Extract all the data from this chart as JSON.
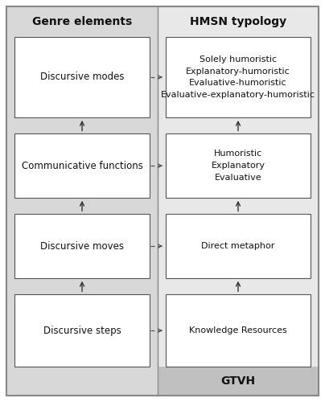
{
  "left_header": "Genre elements",
  "right_header": "HMSN typology",
  "gtvh_label": "GTVH",
  "fig_bg": "#ffffff",
  "outer_bg": "#e0e0e0",
  "left_panel_color": "#d8d8d8",
  "right_upper_color": "#e8e8e8",
  "right_lower_color": "#c0c0c0",
  "box_facecolor": "#ffffff",
  "box_edgecolor": "#555555",
  "header_fontsize": 10,
  "label_fontsize": 8.5,
  "left_boxes": [
    {
      "label": "Discursive modes",
      "row": 3
    },
    {
      "label": "Communicative functions",
      "row": 2
    },
    {
      "label": "Discursive moves",
      "row": 1
    },
    {
      "label": "Discursive steps",
      "row": 0
    }
  ],
  "right_boxes": [
    {
      "label": "Solely humoristic\nExplanatory-humoristic\nEvaluative-humoristic\nEvaluative-explanatory-humoristic",
      "row": 3
    },
    {
      "label": "Humoristic\nExplanatory\nEvaluative",
      "row": 2
    },
    {
      "label": "Direct metaphor",
      "row": 1
    },
    {
      "label": "Knowledge Resources",
      "row": 0
    }
  ]
}
